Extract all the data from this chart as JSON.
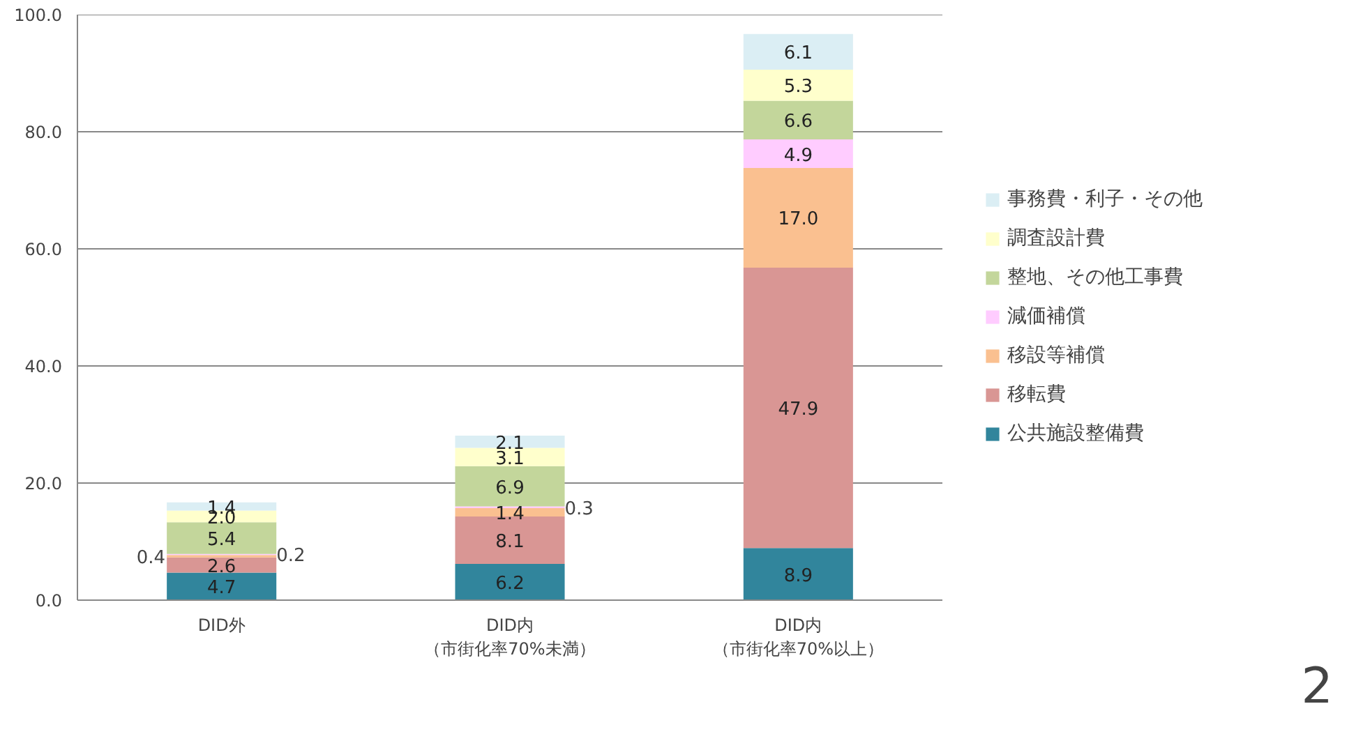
{
  "chart_data": {
    "type": "bar",
    "stacked": true,
    "grid": "y",
    "legend": "right",
    "categories": [
      "DID外",
      "DID内（市街化率70%未満）",
      "DID内（市街化率70%以上）"
    ],
    "ylim": [
      0,
      100
    ],
    "yticks": [
      {
        "value": 0,
        "label": "0.0"
      },
      {
        "value": 20,
        "label": "20.0"
      },
      {
        "value": 40,
        "label": "40.0"
      },
      {
        "value": 60,
        "label": "60.0"
      },
      {
        "value": 80,
        "label": "80.0"
      },
      {
        "value": 100,
        "label": "100.0"
      }
    ],
    "series": [
      {
        "name": "公共施設整備費",
        "color": "#31859c",
        "values": [
          4.7,
          6.2,
          8.9
        ],
        "value_labels": [
          "4.7",
          "6.2",
          "8.9"
        ]
      },
      {
        "name": "移転費",
        "color": "#d99694",
        "values": [
          2.6,
          8.1,
          47.9
        ],
        "value_labels": [
          "2.6",
          "8.1",
          "47.9"
        ]
      },
      {
        "name": "移設等補償",
        "color": "#fac090",
        "values": [
          0.4,
          1.4,
          17.0
        ],
        "value_labels": [
          "0.4",
          "1.4",
          "17.0"
        ]
      },
      {
        "name": "減価補償",
        "color": "#ffccff",
        "values": [
          0.2,
          0.3,
          4.9
        ],
        "value_labels": [
          "0.2",
          "0.3",
          "4.9"
        ]
      },
      {
        "name": "整地、その他工事費",
        "color": "#c3d69b",
        "values": [
          5.4,
          6.9,
          6.6
        ],
        "value_labels": [
          "5.4",
          "6.9",
          "6.6"
        ]
      },
      {
        "name": "調査設計費",
        "color": "#ffffcc",
        "values": [
          2.0,
          3.1,
          5.3
        ],
        "value_labels": [
          "2.0",
          "3.1",
          "5.3"
        ]
      },
      {
        "name": "事務費・利子・その他",
        "color": "#dbeef4",
        "values": [
          1.4,
          2.1,
          6.1
        ],
        "value_labels": [
          "1.4",
          "2.1",
          "6.1"
        ]
      }
    ],
    "annotations": [
      "2"
    ]
  }
}
